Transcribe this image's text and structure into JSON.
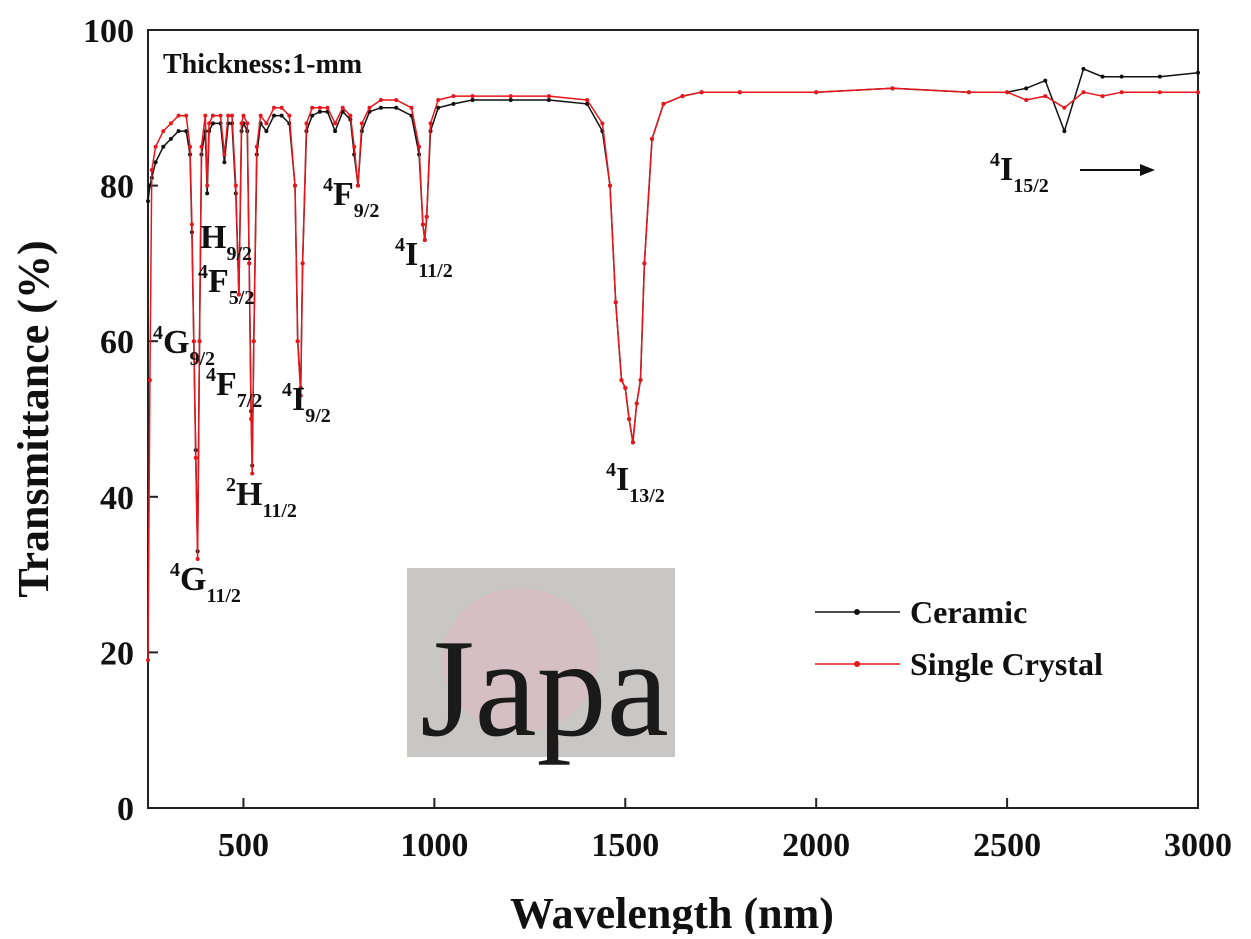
{
  "chart_data": {
    "type": "line",
    "x_label": "Wavelength (nm)",
    "y_label": "Transmittance (%)",
    "xlim": [
      250,
      3000
    ],
    "xticks": [
      500,
      1000,
      1500,
      2000,
      2500,
      3000
    ],
    "ylim": [
      0,
      100
    ],
    "yticks": [
      0,
      20,
      40,
      60,
      80,
      100
    ],
    "legend": "lower right",
    "x": [
      250,
      255,
      260,
      270,
      290,
      310,
      330,
      350,
      360,
      365,
      370,
      375,
      380,
      385,
      390,
      400,
      405,
      410,
      420,
      440,
      450,
      460,
      470,
      480,
      488,
      495,
      500,
      510,
      515,
      520,
      523,
      527,
      535,
      545,
      560,
      580,
      600,
      620,
      635,
      642,
      650,
      655,
      665,
      680,
      700,
      720,
      740,
      760,
      780,
      790,
      800,
      810,
      830,
      860,
      900,
      940,
      960,
      970,
      975,
      980,
      990,
      1010,
      1050,
      1100,
      1200,
      1300,
      1400,
      1440,
      1460,
      1475,
      1490,
      1500,
      1510,
      1520,
      1530,
      1540,
      1550,
      1570,
      1600,
      1650,
      1700,
      1800,
      2000,
      2200,
      2400,
      2500,
      2550,
      2600,
      2650,
      2700,
      2750,
      2800,
      2900,
      3000
    ],
    "series": [
      {
        "name": "Ceramic",
        "color": "#111111",
        "values": [
          78,
          80,
          81,
          83,
          85,
          86,
          87,
          87,
          84,
          74,
          60,
          46,
          33,
          60,
          84,
          87,
          79,
          87,
          88,
          88,
          83,
          88,
          88,
          79,
          66,
          87,
          88,
          87,
          70,
          51,
          44,
          60,
          84,
          88,
          87,
          89,
          89,
          88,
          80,
          60,
          54,
          70,
          87,
          89,
          89.5,
          89.5,
          87,
          89.5,
          88.5,
          84,
          80,
          87,
          89.5,
          90,
          90,
          89,
          84,
          75,
          73,
          76,
          87,
          90,
          90.5,
          91,
          91,
          91,
          90.5,
          87,
          80,
          65,
          55,
          54,
          50,
          47,
          52,
          55,
          70,
          86,
          90.5,
          91.5,
          92,
          92,
          92,
          92.5,
          92,
          92,
          92.5,
          93.5,
          87,
          95,
          94,
          94,
          94,
          94.5
        ]
      },
      {
        "name": "Single Crystal",
        "color": "#e8161b",
        "values": [
          19,
          55,
          82,
          85,
          87,
          88,
          89,
          89,
          85,
          75,
          60,
          45,
          32,
          60,
          85,
          89,
          80,
          88,
          89,
          89,
          84,
          89,
          89,
          80,
          66,
          88,
          89,
          88,
          70,
          50,
          43,
          60,
          85,
          89,
          88,
          90,
          90,
          89,
          80,
          60,
          53,
          70,
          88,
          90,
          90,
          90,
          88,
          90,
          89,
          85,
          80,
          88,
          90,
          91,
          91,
          90,
          85,
          75,
          73,
          76,
          88,
          91,
          91.5,
          91.5,
          91.5,
          91.5,
          91,
          88,
          80,
          65,
          55,
          54,
          50,
          47,
          52,
          55,
          70,
          86,
          90.5,
          91.5,
          92,
          92,
          92,
          92.5,
          92,
          92,
          91,
          91.5,
          90,
          92,
          91.5,
          92,
          92,
          92
        ]
      }
    ],
    "annotations": [
      {
        "text": "Thickness:1-mm"
      },
      {
        "sup": "4",
        "base": "G",
        "sub": "11/2"
      },
      {
        "sup": "2",
        "base": "H",
        "sub": "11/2"
      },
      {
        "sup": "4",
        "base": "F",
        "sub": "7/2"
      },
      {
        "sup": "4",
        "base": "G",
        "sub": "9/2"
      },
      {
        "sup": "4",
        "base": "F",
        "sub": "5/2"
      },
      {
        "base": "H",
        "sub": "9/2"
      },
      {
        "sup": "4",
        "base": "I",
        "sub": "9/2"
      },
      {
        "sup": "4",
        "base": "F",
        "sub": "9/2"
      },
      {
        "sup": "4",
        "base": "I",
        "sub": "11/2"
      },
      {
        "sup": "4",
        "base": "I",
        "sub": "13/2"
      },
      {
        "sup": "4",
        "base": "I",
        "sub": "15/2"
      }
    ],
    "inset_text": "Japa"
  }
}
